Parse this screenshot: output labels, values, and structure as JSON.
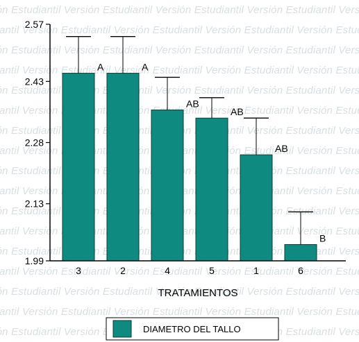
{
  "watermark": {
    "text": "Versión Estudiantil"
  },
  "colors": {
    "bar": "#0f8a80",
    "bar_stroke": "#0a3f3a",
    "axis": "#000000",
    "error_bar": "#000000"
  },
  "chart_data": {
    "type": "bar",
    "categories": [
      "3",
      "2",
      "4",
      "5",
      "1",
      "6"
    ],
    "series": [
      {
        "name": "DIAMETRO DEL TALLO",
        "values": [
          2.45,
          2.45,
          2.36,
          2.34,
          2.25,
          2.03
        ],
        "error_upper": [
          2.54,
          2.54,
          2.44,
          2.39,
          2.34,
          2.11
        ],
        "significance": [
          "A",
          "A",
          "AB",
          "AB",
          "AB",
          "B"
        ]
      }
    ],
    "title": "",
    "xlabel": "TRATAMIENTOS",
    "ylabel": "",
    "ylim": [
      1.99,
      2.57
    ],
    "yticks": [
      1.99,
      2.13,
      2.28,
      2.43,
      2.57
    ],
    "ytick_labels": [
      "1.99",
      "2.13",
      "2.28",
      "2.43",
      "2.57"
    ],
    "grid": false,
    "legend": {
      "position": "bottom-center",
      "entries": [
        "DIAMETRO DEL TALLO"
      ]
    }
  }
}
